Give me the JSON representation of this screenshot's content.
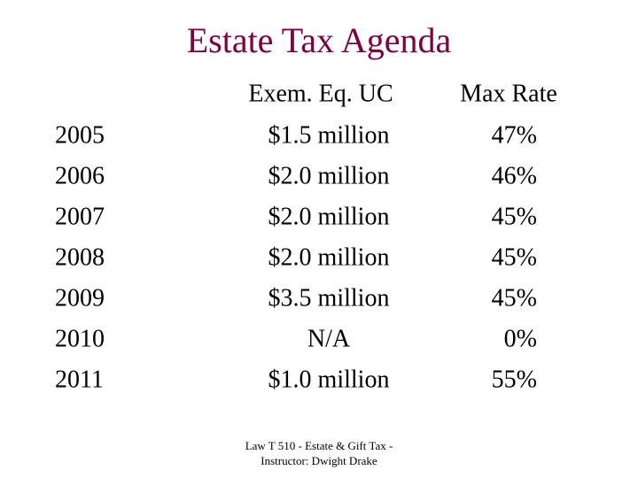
{
  "title": "Estate Tax Agenda",
  "table": {
    "header": [
      "Exem. Eq. UC",
      "Max Rate"
    ],
    "rows": [
      [
        "2005",
        "$1.5 million",
        "47%"
      ],
      [
        "2006",
        "$2.0 million",
        "46%"
      ],
      [
        "2007",
        "$2.0 million",
        "45%"
      ],
      [
        "2008",
        "$2.0 million",
        "45%"
      ],
      [
        "2009",
        "$3.5 million",
        "45%"
      ],
      [
        "2010",
        "N/A",
        "0%"
      ],
      [
        "2011",
        "$1.0 million",
        "55%"
      ]
    ]
  },
  "footer": [
    "Law T 510 - Estate & Gift Tax -",
    "Instructor: Dwight Drake"
  ]
}
